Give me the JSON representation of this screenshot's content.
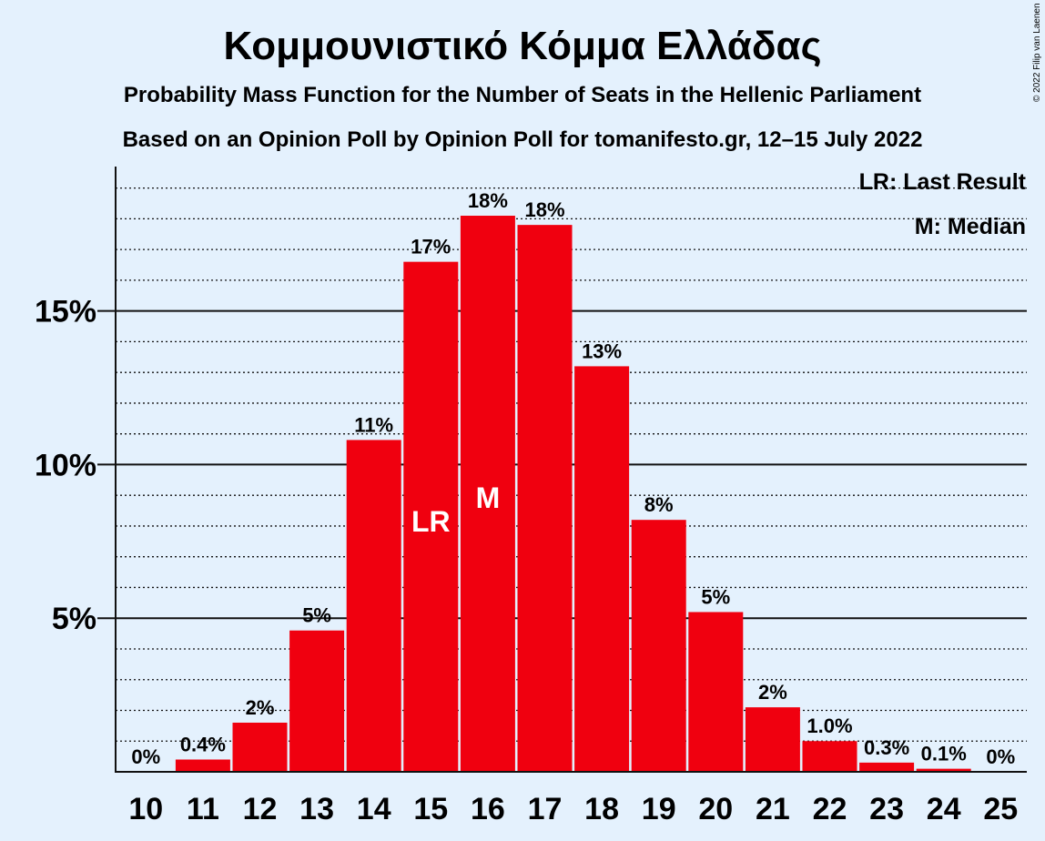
{
  "chart_data": {
    "type": "bar",
    "title": "Κομμουνιστικό Κόμμα Ελλάδας",
    "subtitle_1": "Probability Mass Function for the Number of Seats in the Hellenic Parliament",
    "subtitle_2": "Based on an Opinion Poll by Opinion Poll for tomanifesto.gr, 12–15 July 2022",
    "copyright": "© 2022 Filip van Laenen",
    "legend": [
      "LR: Last Result",
      "M: Median"
    ],
    "legend_position": "top-right",
    "categories": [
      "10",
      "11",
      "12",
      "13",
      "14",
      "15",
      "16",
      "17",
      "18",
      "19",
      "20",
      "21",
      "22",
      "23",
      "24",
      "25"
    ],
    "values": [
      0,
      0.4,
      1.6,
      4.6,
      10.8,
      16.6,
      18.1,
      17.8,
      13.2,
      8.2,
      5.2,
      2.1,
      1.0,
      0.3,
      0.1,
      0
    ],
    "data_labels": [
      "0%",
      "0.4%",
      "2%",
      "5%",
      "11%",
      "17%",
      "18%",
      "18%",
      "13%",
      "8%",
      "5%",
      "2%",
      "1.0%",
      "0.3%",
      "0.1%",
      "0%"
    ],
    "y_ticks": [
      5,
      10,
      15
    ],
    "y_tick_labels": [
      "5%",
      "10%",
      "15%"
    ],
    "ylim": [
      0,
      19.7
    ],
    "last_result": {
      "category": "15",
      "label": "LR"
    },
    "median": {
      "category": "16",
      "label": "M"
    },
    "bar_color": "#f0000f",
    "background_color": "#e4f1fd",
    "grid": "dotted minor lines every 1%, solid lines at labeled ticks",
    "xlabel": "",
    "ylabel": ""
  }
}
